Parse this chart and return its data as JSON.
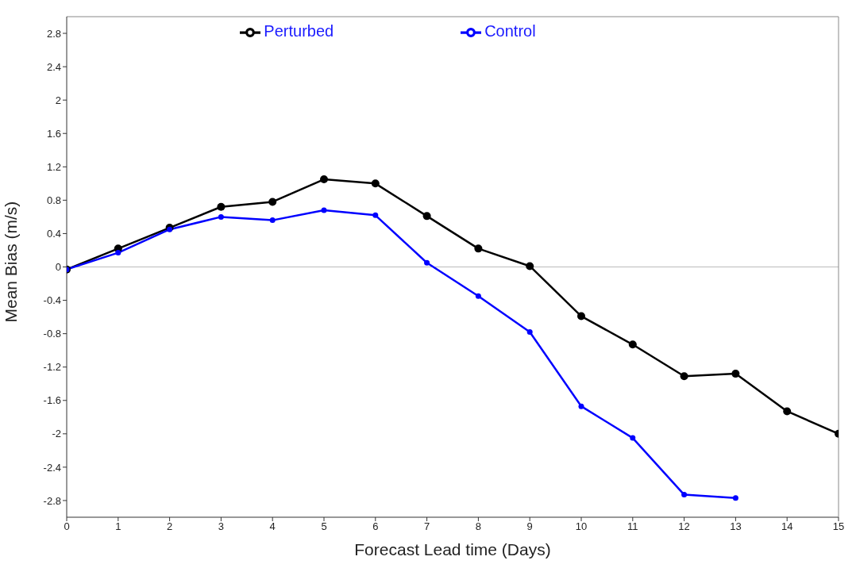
{
  "chart_data": {
    "type": "line",
    "xlabel": "Forecast Lead time (Days)",
    "ylabel": "Mean Bias (m/s)",
    "x": [
      0,
      1,
      2,
      3,
      4,
      5,
      6,
      7,
      8,
      9,
      10,
      11,
      12,
      13,
      14,
      15
    ],
    "series": [
      {
        "name": "Perturbed",
        "color": "#000000",
        "values": [
          -0.03,
          0.22,
          0.47,
          0.72,
          0.78,
          1.05,
          1.0,
          0.61,
          0.22,
          0.01,
          -0.59,
          -0.93,
          -1.31,
          -1.28,
          -1.73,
          -2.0
        ]
      },
      {
        "name": "Control",
        "color": "#0000ff",
        "values": [
          -0.03,
          0.17,
          0.45,
          0.6,
          0.56,
          0.68,
          0.62,
          0.05,
          -0.35,
          -0.78,
          -1.67,
          -2.05,
          -2.73,
          -2.77,
          null,
          null
        ]
      }
    ],
    "xlim": [
      0,
      15
    ],
    "xticks": [
      0,
      1,
      2,
      3,
      4,
      5,
      6,
      7,
      8,
      9,
      10,
      11,
      12,
      13,
      14,
      15
    ],
    "ylim": [
      -3,
      3
    ],
    "yticks": [
      -2.8,
      -2.4,
      -2,
      -1.6,
      -1.2,
      -0.8,
      -0.4,
      0,
      0.4,
      0.8,
      1.2,
      1.6,
      2,
      2.4,
      2.8
    ],
    "ref_lines": [
      {
        "axis": "y",
        "value": 0,
        "color": "#bbbbbb"
      }
    ],
    "grid": false,
    "legend": "top",
    "marker": "circle",
    "line_style": "solid"
  }
}
